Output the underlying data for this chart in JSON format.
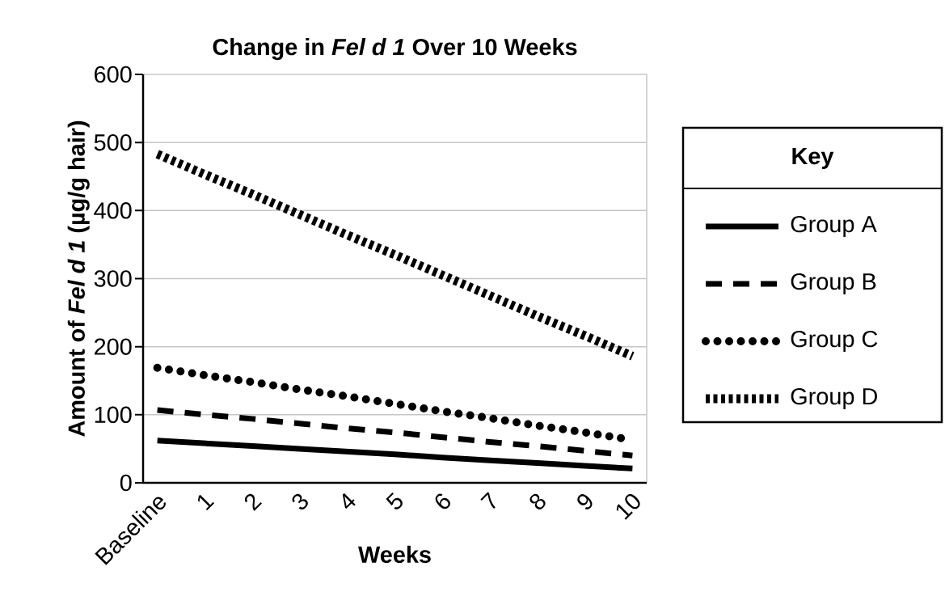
{
  "chart_data": {
    "type": "line",
    "title": "Change in *Fel d 1* Over 10 Weeks",
    "xlabel": "Weeks",
    "ylabel": "Amount of *Fel d 1* (µg/g hair)",
    "legend_title": "Key",
    "categories": [
      "Baseline",
      "1",
      "2",
      "3",
      "4",
      "5",
      "6",
      "7",
      "8",
      "9",
      "10"
    ],
    "series": [
      {
        "name": "Group A",
        "color": "#000000",
        "line_style": "solid",
        "values": [
          62,
          58,
          54,
          50,
          46,
          42,
          37,
          33,
          29,
          25,
          21
        ]
      },
      {
        "name": "Group B",
        "color": "#000000",
        "line_style": "dashed",
        "values": [
          107,
          100,
          94,
          87,
          80,
          74,
          67,
          60,
          54,
          47,
          40
        ]
      },
      {
        "name": "Group C",
        "color": "#000000",
        "line_style": "dotted",
        "values": [
          169,
          158,
          148,
          137,
          127,
          116,
          105,
          95,
          84,
          74,
          63
        ]
      },
      {
        "name": "Group D",
        "color": "#000000",
        "line_style": "dotted",
        "values": [
          483,
          453,
          424,
          394,
          364,
          335,
          305,
          275,
          245,
          216,
          186
        ]
      }
    ],
    "ylim": [
      0,
      600
    ],
    "yticks": [
      0,
      100,
      200,
      300,
      400,
      500,
      600
    ],
    "grid": "y",
    "legend": "right"
  }
}
